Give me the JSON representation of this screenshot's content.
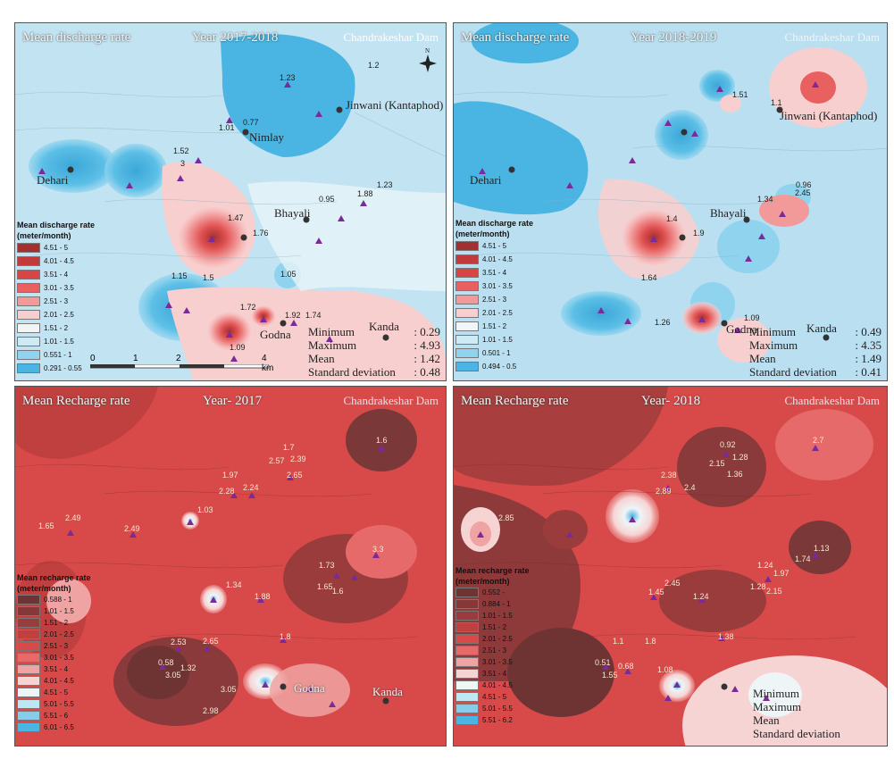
{
  "panels": [
    {
      "id": "p1",
      "title": "Mean discharge rate",
      "year": "Year 2017-2018",
      "dam": "Chandrakeshar Dam",
      "places": [
        "Jinwani (Kantaphod)",
        "Nimlay",
        "Dehari",
        "Bhayali",
        "Godna",
        "Kanda"
      ],
      "legend_title_1": "Mean discharge rate",
      "legend_title_2": "(meter/month)",
      "legend": [
        {
          "label": "4.51 - 5",
          "color": "#a33030"
        },
        {
          "label": "4.01 - 4.5",
          "color": "#c33a3a"
        },
        {
          "label": "3.51 - 4",
          "color": "#d94545"
        },
        {
          "label": "3.01 - 3.5",
          "color": "#e96060"
        },
        {
          "label": "2.51 - 3",
          "color": "#f29a9a"
        },
        {
          "label": "2.01 - 2.5",
          "color": "#f8cfcf"
        },
        {
          "label": "1.51 - 2",
          "color": "#f0f6f8"
        },
        {
          "label": "1.01 - 1.5",
          "color": "#cdeaf5"
        },
        {
          "label": "0.551 - 1",
          "color": "#8fd3ef"
        },
        {
          "label": "0.291 - 0.55",
          "color": "#4ab5e2"
        }
      ],
      "stats": [
        {
          "label": "Minimum",
          "value": ": 0.29"
        },
        {
          "label": "Maximum",
          "value": ": 4.93"
        },
        {
          "label": "Mean",
          "value": ": 1.42"
        },
        {
          "label": "Standard deviation",
          "value": ": 0.48"
        }
      ],
      "scale": {
        "ticks": [
          "0",
          "1",
          "2",
          "4 km"
        ]
      },
      "values": [
        "1.23",
        "0.77",
        "1.01",
        "1.52",
        "3",
        "1.47",
        "1.76",
        "0.95",
        "1.88",
        "1.23",
        "1.15",
        "1.5",
        "1.05",
        "1.72",
        "1.92",
        "1.74",
        "1.09",
        "1.2"
      ]
    },
    {
      "id": "p2",
      "title": "Mean discharge rate",
      "year": "Year 2018-2019",
      "dam": "Chandrakeshar Dam",
      "places": [
        "Jinwani (Kantaphod)",
        "Dehari",
        "Bhayali",
        "Godna",
        "Kanda"
      ],
      "legend_title_1": "Mean discharge rate",
      "legend_title_2": "(meter/month)",
      "legend": [
        {
          "label": "4.51 - 5",
          "color": "#a33030"
        },
        {
          "label": "4.01 - 4.5",
          "color": "#c33a3a"
        },
        {
          "label": "3.51 - 4",
          "color": "#d94545"
        },
        {
          "label": "3.01 - 3.5",
          "color": "#e96060"
        },
        {
          "label": "2.51 - 3",
          "color": "#f29a9a"
        },
        {
          "label": "2.01 - 2.5",
          "color": "#f8cfcf"
        },
        {
          "label": "1.51 - 2",
          "color": "#f0f6f8"
        },
        {
          "label": "1.01 - 1.5",
          "color": "#cdeaf5"
        },
        {
          "label": "0.501 - 1",
          "color": "#8fd3ef"
        },
        {
          "label": "0.494 - 0.5",
          "color": "#4ab5e2"
        }
      ],
      "stats": [
        {
          "label": "Minimum",
          "value": ": 0.49"
        },
        {
          "label": "Maximum",
          "value": ": 4.35"
        },
        {
          "label": "Mean",
          "value": ": 1.49"
        },
        {
          "label": "Standard deviation",
          "value": ": 0.41"
        }
      ],
      "values": [
        "1.51",
        "1.1",
        "2.45",
        "1.34",
        "1.4",
        "1.9",
        "1.64",
        "1.26",
        "1.09",
        "0.96"
      ]
    },
    {
      "id": "p3",
      "title": "Mean Recharge rate",
      "year": "Year- 2017",
      "dam": "Chandrakeshar Dam",
      "places": [
        "Godna",
        "Kanda"
      ],
      "legend_title_1": "Mean recharge rate",
      "legend_title_2": "(meter/month)",
      "legend": [
        {
          "label": "0.588 - 1",
          "color": "#6e3434"
        },
        {
          "label": "1.01 - 1.5",
          "color": "#843838"
        },
        {
          "label": "1.51 - 2",
          "color": "#9a3c3c"
        },
        {
          "label": "2.01 - 2.5",
          "color": "#c04040"
        },
        {
          "label": "2.51 - 3",
          "color": "#d84a4a"
        },
        {
          "label": "3.01 - 3.5",
          "color": "#e66a6a"
        },
        {
          "label": "3.51 - 4",
          "color": "#f0a3a3"
        },
        {
          "label": "4.01 - 4.5",
          "color": "#f7d4d4"
        },
        {
          "label": "4.51 - 5",
          "color": "#eef5f7"
        },
        {
          "label": "5.01 - 5.5",
          "color": "#bfe6f3"
        },
        {
          "label": "5.51 - 6",
          "color": "#84ceec"
        },
        {
          "label": "6.01 - 6.5",
          "color": "#4ab5e2"
        }
      ],
      "values": [
        "1.6",
        "1.7",
        "2.57",
        "2.39",
        "1.97",
        "2.28",
        "2.24",
        "2.65",
        "1.03",
        "1.65",
        "2.49",
        "2.49",
        "1.73",
        "1.65",
        "1.6",
        "3.3",
        "1.34",
        "1.88",
        "1.8",
        "2.53",
        "2.65",
        "0.58",
        "3.05",
        "1.32",
        "3.05",
        "2.98"
      ]
    },
    {
      "id": "p4",
      "title": "Mean Recharge rate",
      "year": "Year- 2018",
      "dam": "Chandrakeshar Dam",
      "places": [],
      "legend_title_1": "Mean recharge rate",
      "legend_title_2": "(meter/month)",
      "legend": [
        {
          "label": "0.552 -",
          "color": "#6e3434"
        },
        {
          "label": "0.884 - 1",
          "color": "#843838"
        },
        {
          "label": "1.01 - 1.5",
          "color": "#9a3c3c"
        },
        {
          "label": "1.51 - 2",
          "color": "#c04040"
        },
        {
          "label": "2.01 - 2.5",
          "color": "#d84a4a"
        },
        {
          "label": "2.51 - 3",
          "color": "#e66a6a"
        },
        {
          "label": "3.01 - 3.5",
          "color": "#f0a3a3"
        },
        {
          "label": "3.51 - 4",
          "color": "#f7d4d4"
        },
        {
          "label": "4.01 - 4.5",
          "color": "#eef5f7"
        },
        {
          "label": "4.51 - 5",
          "color": "#bfe6f3"
        },
        {
          "label": "5.01 - 5.5",
          "color": "#84ceec"
        },
        {
          "label": "5.51 - 6.2",
          "color": "#4ab5e2"
        }
      ],
      "stats": [
        {
          "label": "Minimum",
          "value": ""
        },
        {
          "label": "Maximum",
          "value": ""
        },
        {
          "label": "Mean",
          "value": ""
        },
        {
          "label": "Standard deviation",
          "value": ""
        }
      ],
      "values": [
        "2.7",
        "0.92",
        "2.15",
        "1.28",
        "1.36",
        "2.38",
        "2.89",
        "2.4",
        "2.85",
        "1.13",
        "1.24",
        "1.74",
        "1.97",
        "1.28",
        "2.15",
        "2.45",
        "1.45",
        "1.24",
        "1.38",
        "1.1",
        "1.8",
        "0.51",
        "0.68",
        "1.55",
        "1.08"
      ]
    }
  ]
}
